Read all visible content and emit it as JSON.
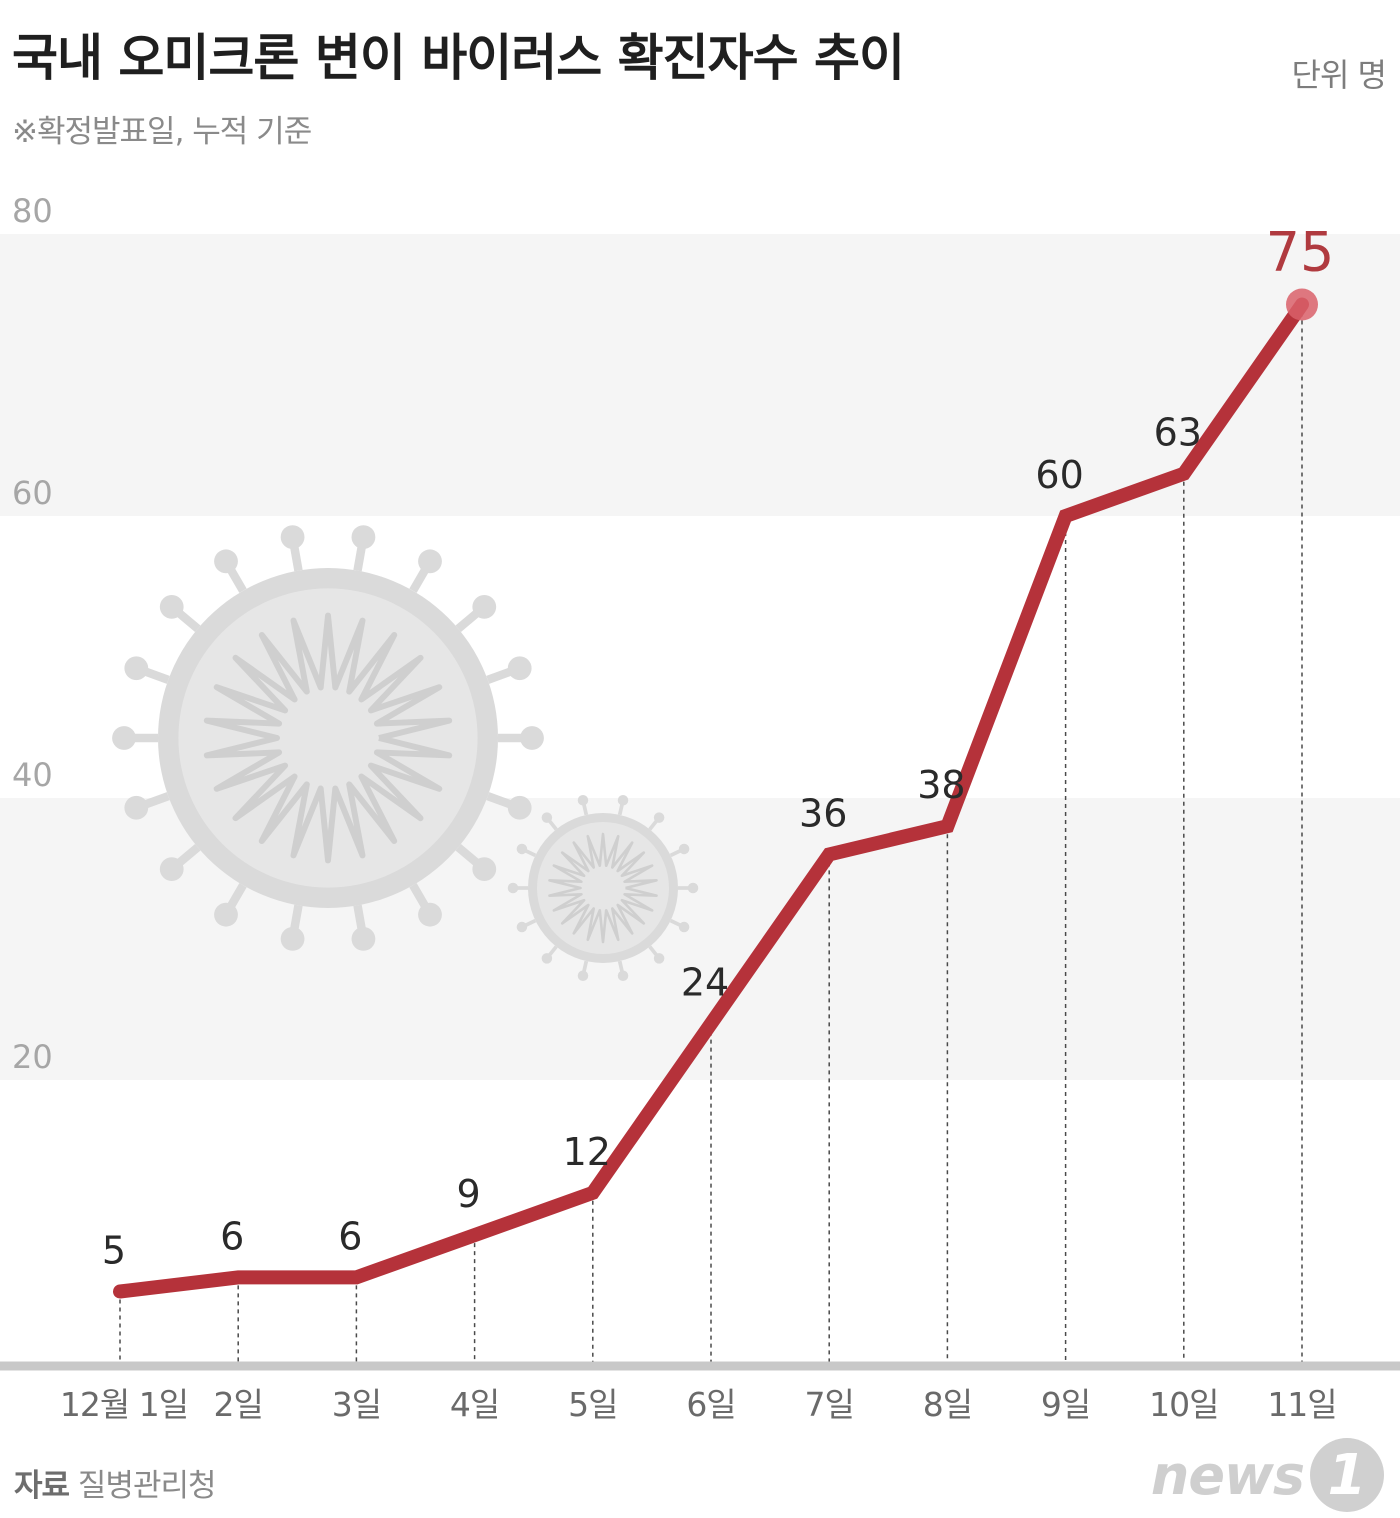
{
  "header": {
    "title": "국내 오미크론 변이 바이러스 확진자수 추이",
    "subtitle": "※확정발표일, 누적 기준",
    "unit": "단위 명"
  },
  "footer": {
    "source_label": "자료",
    "source_name": "질병관리청",
    "brand": "news",
    "brand_badge": "1"
  },
  "chart_data": {
    "type": "line",
    "categories": [
      "12월 1일",
      "2일",
      "3일",
      "4일",
      "5일",
      "6일",
      "7일",
      "8일",
      "9일",
      "10일",
      "11일"
    ],
    "values": [
      5,
      6,
      6,
      9,
      12,
      24,
      36,
      38,
      60,
      63,
      75
    ],
    "data_labels": [
      "5",
      "6",
      "6",
      "9",
      "12",
      "24",
      "36",
      "38",
      "60",
      "63",
      "75"
    ],
    "ylim": [
      0,
      80
    ],
    "yticks": [
      20,
      40,
      60,
      80
    ],
    "ytick_labels": [
      "20",
      "40",
      "60",
      "80"
    ],
    "xlabel": "",
    "ylabel": "",
    "grid": "alternating horizontal bands",
    "colors": {
      "line": "#b5323a",
      "band": "#f5f5f5",
      "baseline": "#c8c8c8",
      "highlight_label": "#b03a3f",
      "virus": "#dadada"
    }
  }
}
